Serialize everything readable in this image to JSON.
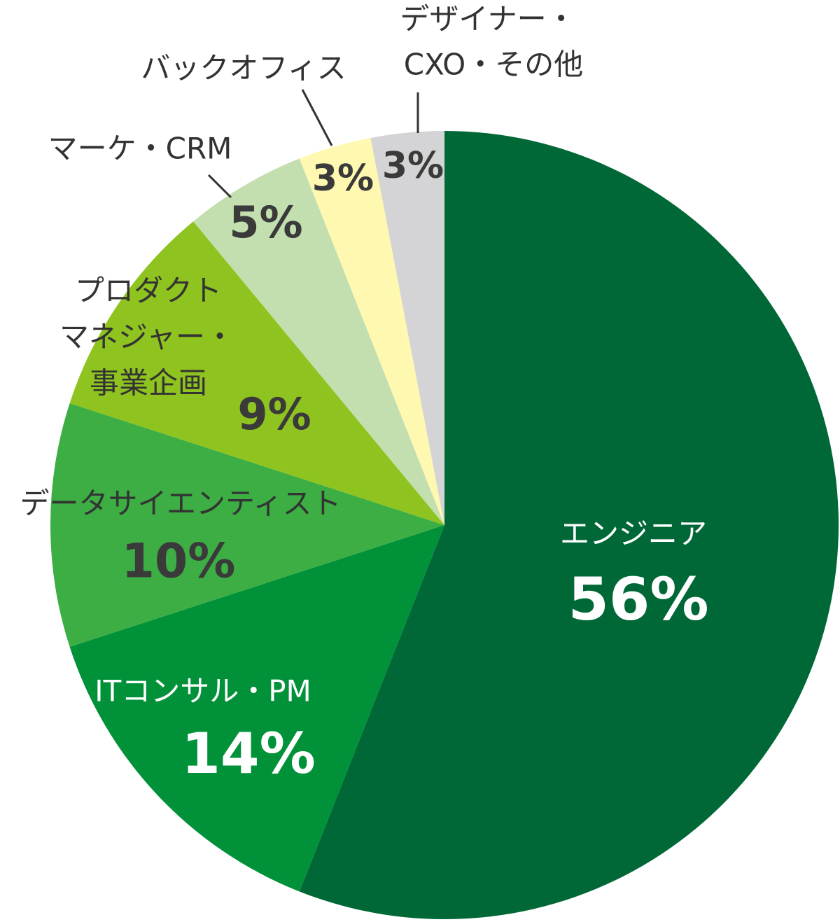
{
  "chart_data": {
    "type": "pie",
    "categories": [
      [
        "エンジニア"
      ],
      [
        "ITコンサル・PM"
      ],
      [
        "データサイエンティスト"
      ],
      [
        "プロダクト",
        "マネジャー・",
        "事業企画"
      ],
      [
        "マーケ・CRM"
      ],
      [
        "バックオフィス"
      ],
      [
        "デザイナー・",
        "CXO・その他"
      ]
    ],
    "values": [
      56,
      14,
      10,
      9,
      5,
      3,
      3
    ],
    "value_labels": [
      "56%",
      "14%",
      "10%",
      "9%",
      "5%",
      "3%",
      "3%"
    ],
    "colors": [
      "#006837",
      "#009139",
      "#3cae44",
      "#8fc31f",
      "#c3dfb0",
      "#fff8b0",
      "#d4d4d6"
    ]
  }
}
